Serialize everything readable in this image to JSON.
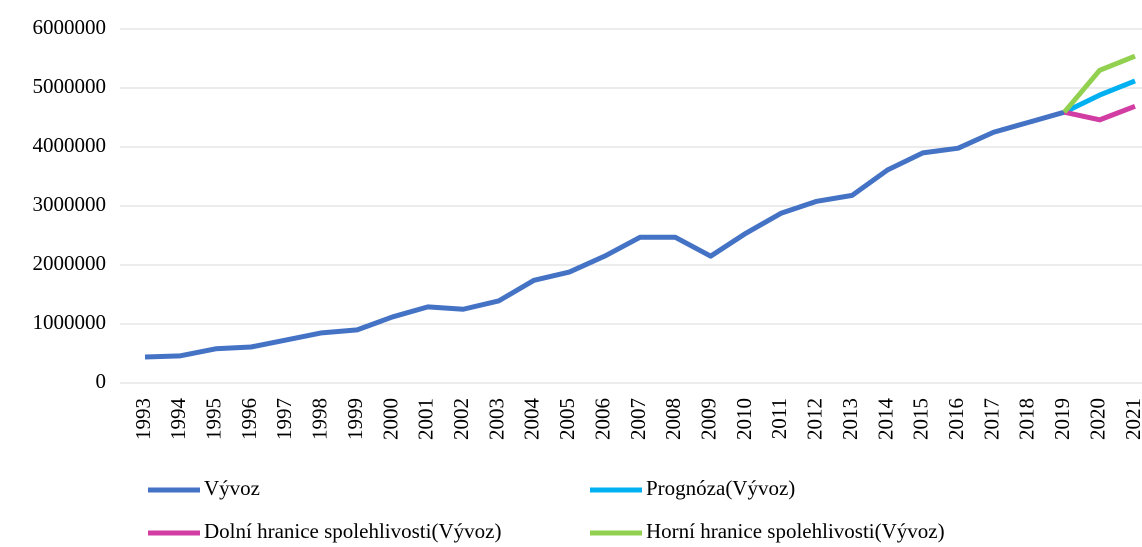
{
  "chart_data": {
    "type": "line",
    "categories": [
      "1993",
      "1994",
      "1995",
      "1996",
      "1997",
      "1998",
      "1999",
      "2000",
      "2001",
      "2002",
      "2003",
      "2004",
      "2005",
      "2006",
      "2007",
      "2008",
      "2009",
      "2010",
      "2011",
      "2012",
      "2013",
      "2014",
      "2015",
      "2016",
      "2017",
      "2018",
      "2019",
      "2020",
      "2021"
    ],
    "series": [
      {
        "name": "Vývoz",
        "color": "#4472c4",
        "values": [
          440000,
          460000,
          580000,
          610000,
          730000,
          850000,
          900000,
          1120000,
          1290000,
          1250000,
          1390000,
          1740000,
          1880000,
          2150000,
          2470000,
          2470000,
          2150000,
          2540000,
          2880000,
          3080000,
          3180000,
          3610000,
          3900000,
          3980000,
          4250000,
          4420000,
          4590000,
          null,
          null
        ]
      },
      {
        "name": "Prognóza(Vývoz)",
        "color": "#00b0f0",
        "values": [
          null,
          null,
          null,
          null,
          null,
          null,
          null,
          null,
          null,
          null,
          null,
          null,
          null,
          null,
          null,
          null,
          null,
          null,
          null,
          null,
          null,
          null,
          null,
          null,
          null,
          null,
          4590000,
          4880000,
          5120000
        ]
      },
      {
        "name": "Dolní hranice spolehlivosti(Vývoz)",
        "color": "#d23da3",
        "values": [
          null,
          null,
          null,
          null,
          null,
          null,
          null,
          null,
          null,
          null,
          null,
          null,
          null,
          null,
          null,
          null,
          null,
          null,
          null,
          null,
          null,
          null,
          null,
          null,
          null,
          null,
          4590000,
          4460000,
          4690000
        ]
      },
      {
        "name": "Horní hranice spolehlivosti(Vývoz)",
        "color": "#92d050",
        "values": [
          null,
          null,
          null,
          null,
          null,
          null,
          null,
          null,
          null,
          null,
          null,
          null,
          null,
          null,
          null,
          null,
          null,
          null,
          null,
          null,
          null,
          null,
          null,
          null,
          null,
          null,
          4590000,
          5300000,
          5540000
        ]
      }
    ],
    "ylim": [
      0,
      6000000
    ],
    "yticks": [
      0,
      1000000,
      2000000,
      3000000,
      4000000,
      5000000,
      6000000
    ],
    "grid": true
  }
}
